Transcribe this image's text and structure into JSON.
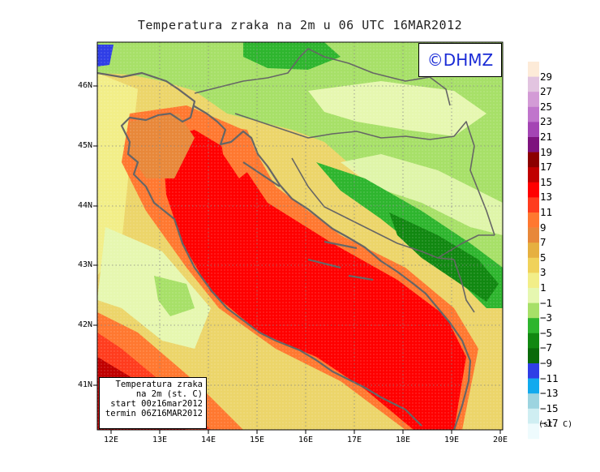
{
  "title": "Temperatura zraka na 2m u 06 UTC 16MAR2012",
  "logo": "©DHMZ",
  "info_box": {
    "line1": "Temperatura zraka",
    "line2": "na 2m (st. C)",
    "line3": "start 00z16mar2012",
    "line4": "termin 06Z16MAR2012"
  },
  "lat_labels": [
    "46N",
    "45N",
    "44N",
    "43N",
    "42N",
    "41N"
  ],
  "lon_labels": [
    "12E",
    "13E",
    "14E",
    "15E",
    "16E",
    "17E",
    "18E",
    "19E",
    "20E"
  ],
  "legend": {
    "labels": [
      "29",
      "27",
      "25",
      "23",
      "21",
      "19",
      "17",
      "15",
      "13",
      "11",
      "9",
      "7",
      "5",
      "3",
      "1",
      "−1",
      "−3",
      "−5",
      "−7",
      "−9",
      "−11",
      "−13",
      "−15",
      "−17"
    ],
    "colors": [
      "#fdebd8",
      "#e2c4e0",
      "#d39bd6",
      "#c075cc",
      "#a445b4",
      "#7e137e",
      "#8c0000",
      "#c00000",
      "#ff0000",
      "#ff3c1e",
      "#ff7830",
      "#e8883a",
      "#e6b040",
      "#f0d25a",
      "#f2ee88",
      "#e6f7b0",
      "#a7e068",
      "#2eb52e",
      "#118811",
      "#0a6a0a",
      "#2f3ee6",
      "#11aaee",
      "#9cd4e0",
      "#cfeef2",
      "#eefbfd"
    ],
    "units": "(st. C)"
  }
}
